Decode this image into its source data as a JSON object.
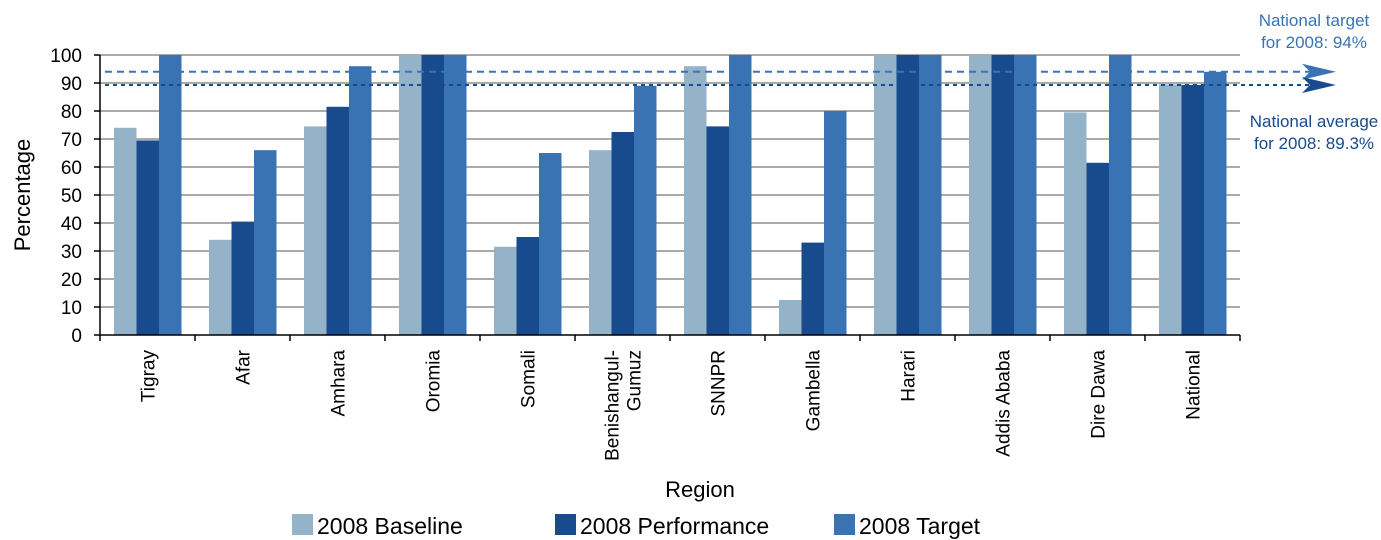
{
  "chart_data": {
    "type": "bar",
    "ylabel": "Percentage",
    "xlabel": "Region",
    "ylim": [
      0,
      100
    ],
    "yticks": [
      0,
      10,
      20,
      30,
      40,
      50,
      60,
      70,
      80,
      90,
      100
    ],
    "grid": "horizontal",
    "legend_position": "bottom",
    "categories": [
      [
        "Tigray"
      ],
      [
        "Afar"
      ],
      [
        "Amhara"
      ],
      [
        "Oromia"
      ],
      [
        "Somali"
      ],
      [
        "Benishangul-",
        "Gumuz"
      ],
      [
        "SNNPR"
      ],
      [
        "Gambella"
      ],
      [
        "Harari"
      ],
      [
        "Addis Ababa"
      ],
      [
        "Dire Dawa"
      ],
      [
        "National"
      ]
    ],
    "series": [
      {
        "name": "2008 Baseline",
        "color": "#94b2c8",
        "values": [
          74,
          34,
          74.5,
          100,
          31.5,
          66,
          96,
          12.5,
          100,
          100,
          79.5,
          89.5
        ]
      },
      {
        "name": "2008 Performance",
        "color": "#174b8d",
        "values": [
          69.5,
          40.5,
          81.5,
          100,
          35,
          72.5,
          74.5,
          33,
          100,
          100,
          61.5,
          89.3
        ]
      },
      {
        "name": "2008 Target",
        "color": "#3a73b4",
        "values": [
          100,
          66,
          96,
          100,
          65,
          89,
          100,
          80,
          100,
          100,
          100,
          94
        ]
      }
    ],
    "reference_lines": [
      {
        "value": 94,
        "label": [
          "National target",
          "for 2008: 94%"
        ],
        "color": "#3a73b4"
      },
      {
        "value": 89.3,
        "label": [
          "National average",
          "for 2008:  89.3%"
        ],
        "color": "#174b8d"
      }
    ]
  }
}
